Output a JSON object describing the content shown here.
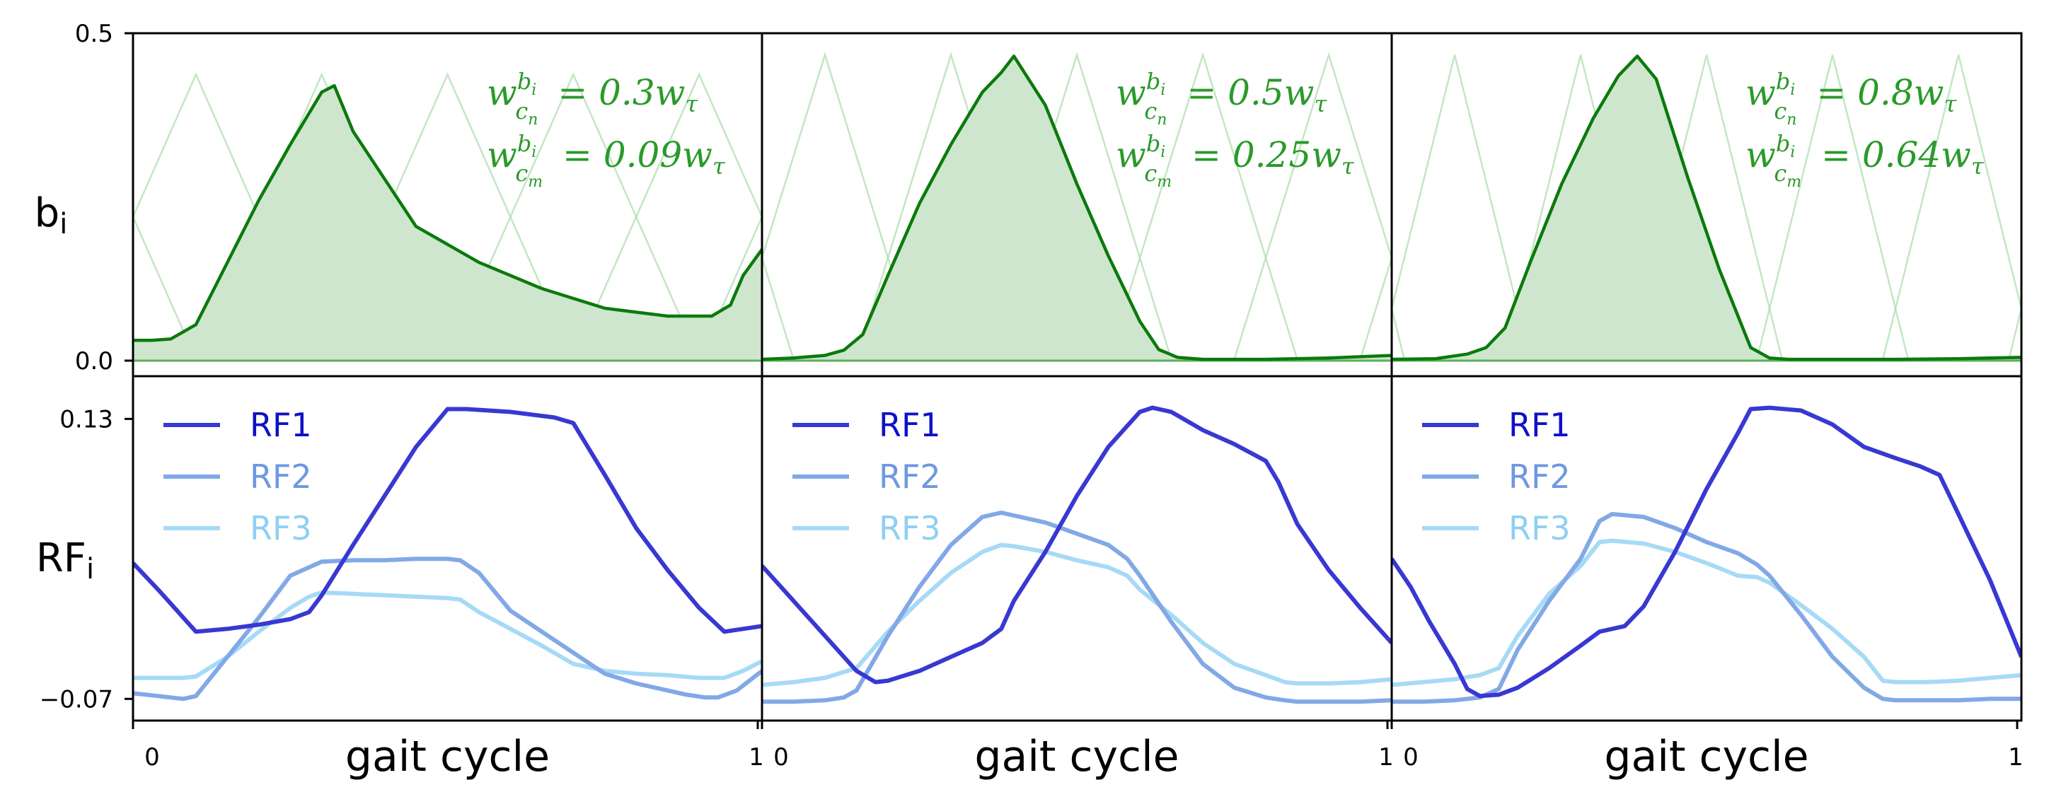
{
  "chart_data": {
    "type": "line",
    "layout": "2 rows x 3 columns, shared axes",
    "shared_xlabel": "gait cycle",
    "x_ticks": [
      "0",
      "1"
    ],
    "top_row": {
      "ylabel": "b",
      "ylabel_subscript": "i",
      "ylim": [
        0,
        0.5
      ],
      "yticks": [
        "0.0",
        "0.5"
      ],
      "panels": [
        {
          "annotation_line1": {
            "lhs": "w",
            "sup": "b",
            "sup_sub": "i",
            "sub": "c",
            "sub_sub": "n",
            "rhs": "= 0.3w",
            "rhs_sub": "τ"
          },
          "annotation_line2": {
            "lhs": "w",
            "sup": "b",
            "sup_sub": "i",
            "sub": "c",
            "sub_sub": "m",
            "rhs": "= 0.09w",
            "rhs_sub": "τ"
          },
          "highlight": {
            "x": [
              0,
              0.03,
              0.06,
              0.1,
              0.15,
              0.2,
              0.25,
              0.3,
              0.32,
              0.35,
              0.45,
              0.55,
              0.65,
              0.75,
              0.85,
              0.92,
              0.95,
              0.97,
              1.0
            ],
            "y": [
              0.031,
              0.031,
              0.033,
              0.055,
              0.15,
              0.245,
              0.33,
              0.41,
              0.42,
              0.35,
              0.205,
              0.15,
              0.11,
              0.08,
              0.068,
              0.068,
              0.085,
              0.13,
              0.17
            ]
          },
          "faint_peaks": [
            0.1,
            0.3,
            0.5,
            0.7,
            0.9
          ],
          "faint_peak_height": 0.435,
          "faint_half_width": 0.2
        },
        {
          "annotation_line1": {
            "lhs": "w",
            "sup": "b",
            "sup_sub": "i",
            "sub": "c",
            "sub_sub": "n",
            "rhs": "= 0.5w",
            "rhs_sub": "τ"
          },
          "annotation_line2": {
            "lhs": "w",
            "sup": "b",
            "sup_sub": "i",
            "sub": "c",
            "sub_sub": "m",
            "rhs": "= 0.25w",
            "rhs_sub": "τ"
          },
          "highlight": {
            "x": [
              0,
              0.05,
              0.1,
              0.13,
              0.16,
              0.2,
              0.25,
              0.3,
              0.35,
              0.38,
              0.4,
              0.45,
              0.5,
              0.55,
              0.6,
              0.63,
              0.66,
              0.7,
              0.8,
              0.9,
              1.0
            ],
            "y": [
              0.002,
              0.004,
              0.008,
              0.016,
              0.04,
              0.13,
              0.24,
              0.33,
              0.41,
              0.44,
              0.465,
              0.39,
              0.27,
              0.16,
              0.06,
              0.017,
              0.005,
              0.002,
              0.002,
              0.004,
              0.008
            ]
          },
          "faint_peaks": [
            0.1,
            0.3,
            0.5,
            0.7,
            0.9
          ],
          "faint_peak_height": 0.465,
          "faint_half_width": 0.15
        },
        {
          "annotation_line1": {
            "lhs": "w",
            "sup": "b",
            "sup_sub": "i",
            "sub": "c",
            "sub_sub": "n",
            "rhs": "= 0.8w",
            "rhs_sub": "τ"
          },
          "annotation_line2": {
            "lhs": "w",
            "sup": "b",
            "sup_sub": "i",
            "sub": "c",
            "sub_sub": "m",
            "rhs": "= 0.64w",
            "rhs_sub": "τ"
          },
          "highlight": {
            "x": [
              0,
              0.07,
              0.12,
              0.15,
              0.18,
              0.22,
              0.27,
              0.32,
              0.36,
              0.39,
              0.42,
              0.47,
              0.52,
              0.57,
              0.6,
              0.63,
              0.7,
              0.8,
              0.9,
              1.0
            ],
            "y": [
              0.002,
              0.003,
              0.01,
              0.02,
              0.05,
              0.15,
              0.27,
              0.37,
              0.435,
              0.465,
              0.43,
              0.28,
              0.14,
              0.02,
              0.004,
              0.002,
              0.002,
              0.002,
              0.003,
              0.005
            ]
          },
          "faint_peaks": [
            0.1,
            0.3,
            0.5,
            0.7,
            0.9
          ],
          "faint_peak_height": 0.465,
          "faint_half_width": 0.12
        }
      ]
    },
    "bottom_row": {
      "ylabel": "RF",
      "ylabel_subscript": "i",
      "ylim": [
        -0.085,
        0.16
      ],
      "yticks": [
        "0.13",
        "−0.07"
      ],
      "ytick_values": [
        0.13,
        -0.07
      ],
      "legend": [
        {
          "label": "RF1",
          "color": "#3838d2",
          "text_color": "#1010c8"
        },
        {
          "label": "RF2",
          "color": "#82a8e6",
          "text_color": "#6f98e0"
        },
        {
          "label": "RF3",
          "color": "#a6daf6",
          "text_color": "#8fd0f2"
        }
      ],
      "panels": [
        {
          "series": [
            {
              "name": "RF1",
              "x": [
                0,
                0.04,
                0.08,
                0.1,
                0.15,
                0.2,
                0.25,
                0.28,
                0.3,
                0.35,
                0.4,
                0.45,
                0.5,
                0.53,
                0.6,
                0.67,
                0.7,
                0.75,
                0.8,
                0.85,
                0.9,
                0.94,
                0.97,
                1.0
              ],
              "y": [
                0.027,
                0.008,
                -0.012,
                -0.022,
                -0.02,
                -0.017,
                -0.013,
                -0.008,
                0.004,
                0.04,
                0.075,
                0.11,
                0.137,
                0.137,
                0.135,
                0.131,
                0.127,
                0.09,
                0.052,
                0.022,
                -0.005,
                -0.022,
                -0.02,
                -0.018
              ]
            },
            {
              "name": "RF2",
              "x": [
                0,
                0.04,
                0.08,
                0.1,
                0.15,
                0.2,
                0.25,
                0.3,
                0.35,
                0.4,
                0.45,
                0.5,
                0.52,
                0.55,
                0.6,
                0.7,
                0.75,
                0.8,
                0.85,
                0.88,
                0.91,
                0.93,
                0.96,
                1.0
              ],
              "y": [
                -0.066,
                -0.068,
                -0.07,
                -0.068,
                -0.04,
                -0.012,
                0.018,
                0.028,
                0.029,
                0.029,
                0.03,
                0.03,
                0.029,
                0.02,
                -0.007,
                -0.037,
                -0.052,
                -0.059,
                -0.064,
                -0.067,
                -0.069,
                -0.069,
                -0.064,
                -0.05
              ]
            },
            {
              "name": "RF3",
              "x": [
                0,
                0.04,
                0.08,
                0.1,
                0.15,
                0.2,
                0.25,
                0.28,
                0.3,
                0.35,
                0.4,
                0.45,
                0.5,
                0.52,
                0.55,
                0.6,
                0.65,
                0.7,
                0.75,
                0.8,
                0.85,
                0.9,
                0.94,
                0.97,
                1.0
              ],
              "y": [
                -0.055,
                -0.055,
                -0.055,
                -0.054,
                -0.04,
                -0.022,
                -0.005,
                0.003,
                0.006,
                0.005,
                0.004,
                0.003,
                0.002,
                0.001,
                -0.008,
                -0.02,
                -0.032,
                -0.045,
                -0.05,
                -0.052,
                -0.053,
                -0.055,
                -0.055,
                -0.05,
                -0.043
              ]
            }
          ]
        },
        {
          "series": [
            {
              "name": "RF1",
              "x": [
                0,
                0.04,
                0.08,
                0.12,
                0.15,
                0.18,
                0.2,
                0.25,
                0.3,
                0.35,
                0.38,
                0.4,
                0.45,
                0.5,
                0.55,
                0.6,
                0.62,
                0.65,
                0.7,
                0.75,
                0.8,
                0.82,
                0.85,
                0.9,
                0.95,
                1.0
              ],
              "y": [
                0.025,
                0.005,
                -0.015,
                -0.035,
                -0.05,
                -0.058,
                -0.057,
                -0.05,
                -0.04,
                -0.03,
                -0.02,
                0.0,
                0.035,
                0.075,
                0.11,
                0.135,
                0.138,
                0.135,
                0.122,
                0.112,
                0.1,
                0.085,
                0.055,
                0.022,
                -0.005,
                -0.03
              ]
            },
            {
              "name": "RF2",
              "x": [
                0,
                0.05,
                0.1,
                0.13,
                0.15,
                0.2,
                0.25,
                0.3,
                0.35,
                0.38,
                0.4,
                0.45,
                0.5,
                0.55,
                0.58,
                0.6,
                0.65,
                0.7,
                0.75,
                0.8,
                0.83,
                0.85,
                0.9,
                0.95,
                1.0
              ],
              "y": [
                -0.072,
                -0.072,
                -0.071,
                -0.069,
                -0.064,
                -0.025,
                0.01,
                0.04,
                0.06,
                0.063,
                0.061,
                0.056,
                0.048,
                0.04,
                0.03,
                0.018,
                -0.015,
                -0.045,
                -0.062,
                -0.069,
                -0.071,
                -0.072,
                -0.072,
                -0.072,
                -0.071
              ]
            },
            {
              "name": "RF3",
              "x": [
                0,
                0.05,
                0.1,
                0.15,
                0.2,
                0.25,
                0.3,
                0.35,
                0.38,
                0.4,
                0.45,
                0.5,
                0.55,
                0.58,
                0.6,
                0.65,
                0.7,
                0.75,
                0.8,
                0.83,
                0.85,
                0.9,
                0.95,
                1.0
              ],
              "y": [
                -0.06,
                -0.058,
                -0.055,
                -0.048,
                -0.022,
                0.0,
                0.02,
                0.035,
                0.04,
                0.039,
                0.035,
                0.029,
                0.024,
                0.018,
                0.008,
                -0.01,
                -0.03,
                -0.045,
                -0.053,
                -0.058,
                -0.059,
                -0.059,
                -0.058,
                -0.056
              ]
            }
          ]
        },
        {
          "series": [
            {
              "name": "RF1",
              "x": [
                0,
                0.03,
                0.06,
                0.1,
                0.12,
                0.14,
                0.17,
                0.2,
                0.25,
                0.3,
                0.33,
                0.37,
                0.4,
                0.45,
                0.5,
                0.55,
                0.57,
                0.6,
                0.65,
                0.7,
                0.75,
                0.8,
                0.84,
                0.87,
                0.9,
                0.95,
                1.0
              ],
              "y": [
                0.03,
                0.01,
                -0.015,
                -0.045,
                -0.063,
                -0.068,
                -0.067,
                -0.062,
                -0.048,
                -0.032,
                -0.022,
                -0.018,
                -0.004,
                0.035,
                0.08,
                0.12,
                0.137,
                0.138,
                0.136,
                0.126,
                0.11,
                0.102,
                0.096,
                0.09,
                0.062,
                0.015,
                -0.04
              ]
            },
            {
              "name": "RF2",
              "x": [
                0,
                0.05,
                0.1,
                0.14,
                0.17,
                0.2,
                0.25,
                0.3,
                0.33,
                0.35,
                0.4,
                0.45,
                0.5,
                0.55,
                0.58,
                0.6,
                0.65,
                0.7,
                0.75,
                0.78,
                0.8,
                0.85,
                0.9,
                0.95,
                1.0
              ],
              "y": [
                -0.072,
                -0.072,
                -0.071,
                -0.069,
                -0.063,
                -0.035,
                0.0,
                0.03,
                0.057,
                0.062,
                0.06,
                0.052,
                0.042,
                0.034,
                0.026,
                0.018,
                -0.01,
                -0.04,
                -0.062,
                -0.07,
                -0.071,
                -0.071,
                -0.071,
                -0.07,
                -0.07
              ]
            },
            {
              "name": "RF3",
              "x": [
                0,
                0.05,
                0.1,
                0.14,
                0.17,
                0.2,
                0.25,
                0.3,
                0.33,
                0.35,
                0.4,
                0.45,
                0.5,
                0.55,
                0.58,
                0.6,
                0.65,
                0.7,
                0.75,
                0.78,
                0.8,
                0.85,
                0.9,
                0.95,
                1.0
              ],
              "y": [
                -0.06,
                -0.058,
                -0.056,
                -0.053,
                -0.048,
                -0.025,
                0.005,
                0.025,
                0.042,
                0.043,
                0.041,
                0.035,
                0.027,
                0.018,
                0.017,
                0.013,
                -0.003,
                -0.02,
                -0.04,
                -0.057,
                -0.058,
                -0.058,
                -0.057,
                -0.055,
                -0.053
              ]
            }
          ]
        }
      ]
    }
  }
}
